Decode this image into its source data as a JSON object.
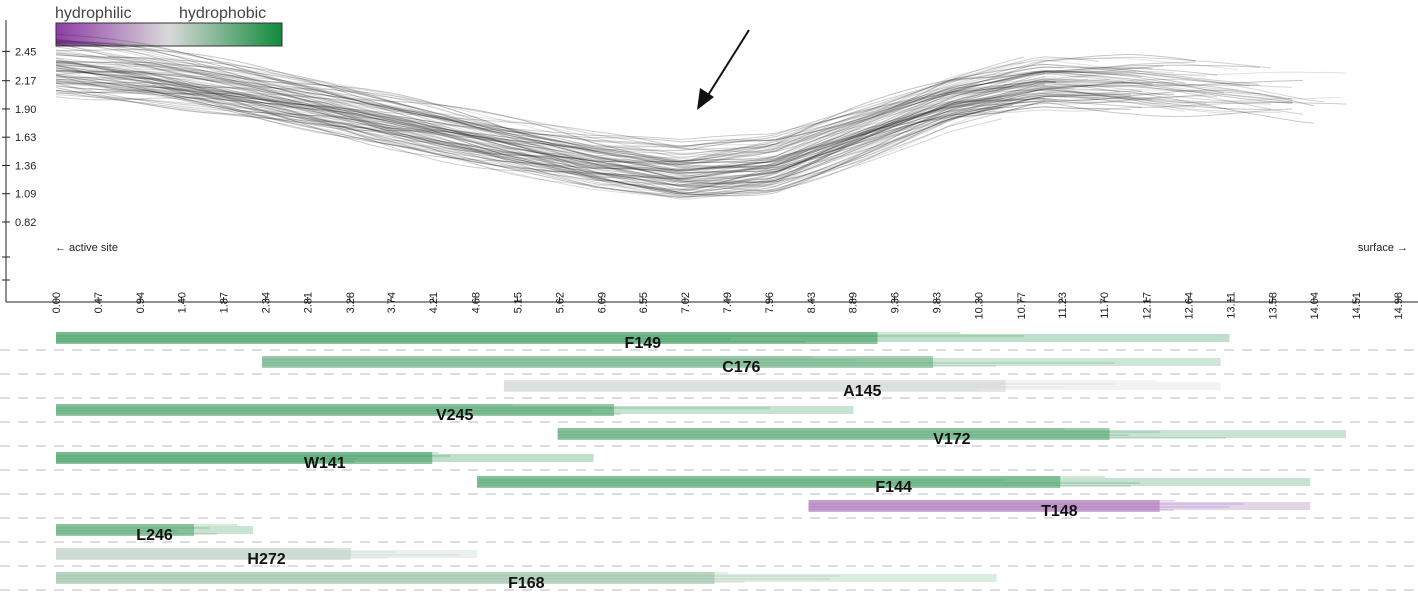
{
  "legend": {
    "low_label": "hydrophilic",
    "high_label": "hydrophobic",
    "colors": [
      "#8e3da6",
      "#d9d9d9",
      "#118a3c"
    ]
  },
  "labels": {
    "left": "← active site",
    "right": "surface →"
  },
  "chart_data": [
    {
      "type": "line",
      "title": "",
      "xlabel": "",
      "ylabel": "",
      "y_ticks": [
        "2.45",
        "2.17",
        "1.90",
        "1.63",
        "1.36",
        "1.09",
        "0.82"
      ],
      "y_tick_values": [
        2.45,
        2.17,
        1.9,
        1.63,
        1.36,
        1.09,
        0.82
      ],
      "x_ticks": [
        "0.00",
        "0.47",
        "0.94",
        "1.40",
        "1.87",
        "2.34",
        "2.81",
        "3.28",
        "3.74",
        "4.21",
        "4.68",
        "5.15",
        "5.62",
        "6.09",
        "6.55",
        "7.02",
        "7.49",
        "7.96",
        "8.43",
        "8.89",
        "9.36",
        "9.83",
        "10.30",
        "10.77",
        "11.23",
        "11.70",
        "12.17",
        "12.64",
        "13.11",
        "13.58",
        "14.04",
        "14.51",
        "14.98"
      ],
      "xlim": [
        0,
        14.98
      ],
      "ylim": [
        0.6,
        2.75
      ],
      "line_color": "#222222",
      "series_count": 90,
      "mean_profile": {
        "x": [
          0.0,
          1.0,
          2.0,
          3.0,
          4.0,
          5.0,
          6.0,
          7.0,
          8.0,
          9.0,
          10.0,
          11.0,
          12.0,
          13.0,
          14.0
        ],
        "y": [
          2.32,
          2.22,
          2.08,
          1.93,
          1.76,
          1.57,
          1.4,
          1.3,
          1.38,
          1.68,
          1.98,
          2.15,
          2.14,
          2.08,
          2.02
        ]
      }
    },
    {
      "type": "heatmap",
      "title": "",
      "xlim": [
        0,
        14.98
      ],
      "color_scale": [
        "#8e3da6",
        "#d9d9d9",
        "#118a3c"
      ],
      "rows": [
        {
          "residue": "F149",
          "start": 0.0,
          "end": 13.1,
          "hydrophobicity": 0.85
        },
        {
          "residue": "C176",
          "start": 2.3,
          "end": 13.0,
          "hydrophobicity": 0.6
        },
        {
          "residue": "A145",
          "start": 5.0,
          "end": 13.0,
          "hydrophobicity": 0.05
        },
        {
          "residue": "V245",
          "start": 0.0,
          "end": 8.9,
          "hydrophobicity": 0.75
        },
        {
          "residue": "V172",
          "start": 5.6,
          "end": 14.4,
          "hydrophobicity": 0.7
        },
        {
          "residue": "W141",
          "start": 0.0,
          "end": 6.0,
          "hydrophobicity": 0.85
        },
        {
          "residue": "F144",
          "start": 4.7,
          "end": 14.0,
          "hydrophobicity": 0.75
        },
        {
          "residue": "T148",
          "start": 8.4,
          "end": 14.0,
          "hydrophobicity": -0.7
        },
        {
          "residue": "L246",
          "start": 0.0,
          "end": 2.2,
          "hydrophobicity": 0.7
        },
        {
          "residue": "H272",
          "start": 0.0,
          "end": 4.7,
          "hydrophobicity": 0.15
        },
        {
          "residue": "F168",
          "start": 0.0,
          "end": 10.5,
          "hydrophobicity": 0.35
        }
      ]
    }
  ]
}
